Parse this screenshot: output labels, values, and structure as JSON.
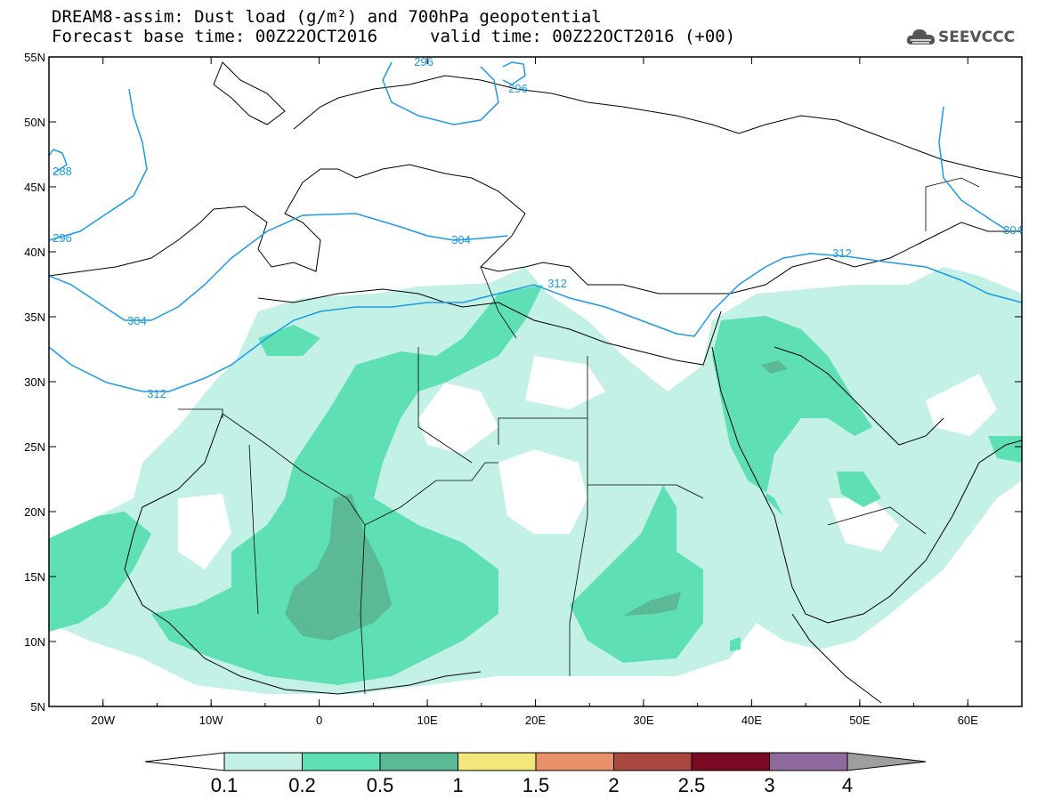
{
  "title": {
    "line1": "DREAM8-assim: Dust load (g/m²) and 700hPa geopotential",
    "base_time": "Forecast base time: 00Z22OCT2016",
    "valid_time": "valid time: 00Z22OCT2016 (+00)"
  },
  "logo": {
    "text": "SEEVCCC",
    "icon": "cloud-icon"
  },
  "map": {
    "lon_range": [
      -25,
      65
    ],
    "lat_range": [
      5,
      55
    ],
    "lon_ticks": [
      {
        "v": -20,
        "label": "20W"
      },
      {
        "v": -10,
        "label": "10W"
      },
      {
        "v": 0,
        "label": "0"
      },
      {
        "v": 10,
        "label": "10E"
      },
      {
        "v": 20,
        "label": "20E"
      },
      {
        "v": 30,
        "label": "30E"
      },
      {
        "v": 40,
        "label": "40E"
      },
      {
        "v": 50,
        "label": "50E"
      },
      {
        "v": 60,
        "label": "60E"
      }
    ],
    "lat_ticks": [
      {
        "v": 55,
        "label": "55N"
      },
      {
        "v": 50,
        "label": "50N"
      },
      {
        "v": 45,
        "label": "45N"
      },
      {
        "v": 40,
        "label": "40N"
      },
      {
        "v": 35,
        "label": "35N"
      },
      {
        "v": 30,
        "label": "30N"
      },
      {
        "v": 25,
        "label": "25N"
      },
      {
        "v": 20,
        "label": "20N"
      },
      {
        "v": 15,
        "label": "15N"
      },
      {
        "v": 10,
        "label": "10N"
      },
      {
        "v": 5,
        "label": "5N"
      }
    ],
    "contour_labels": [
      "288",
      "296",
      "296",
      "296",
      "304",
      "304",
      "304",
      "312",
      "312",
      "312"
    ]
  },
  "colorbar": {
    "labels": [
      "0.1",
      "0.2",
      "0.5",
      "1",
      "1.5",
      "2",
      "2.5",
      "3",
      "4"
    ],
    "colors": [
      "#ffffff",
      "#c4f1e6",
      "#5ee0b4",
      "#5cb996",
      "#f3e67a",
      "#e9916a",
      "#a9483f",
      "#7b0b24",
      "#8e6a9e",
      "#9e9e9e"
    ]
  },
  "colors": {
    "light_dust": "#c4f1e6",
    "mid_dust": "#5ee0b4",
    "heavy_dust": "#5cb996",
    "contour": "#1a9be6",
    "coast": "#000000"
  }
}
